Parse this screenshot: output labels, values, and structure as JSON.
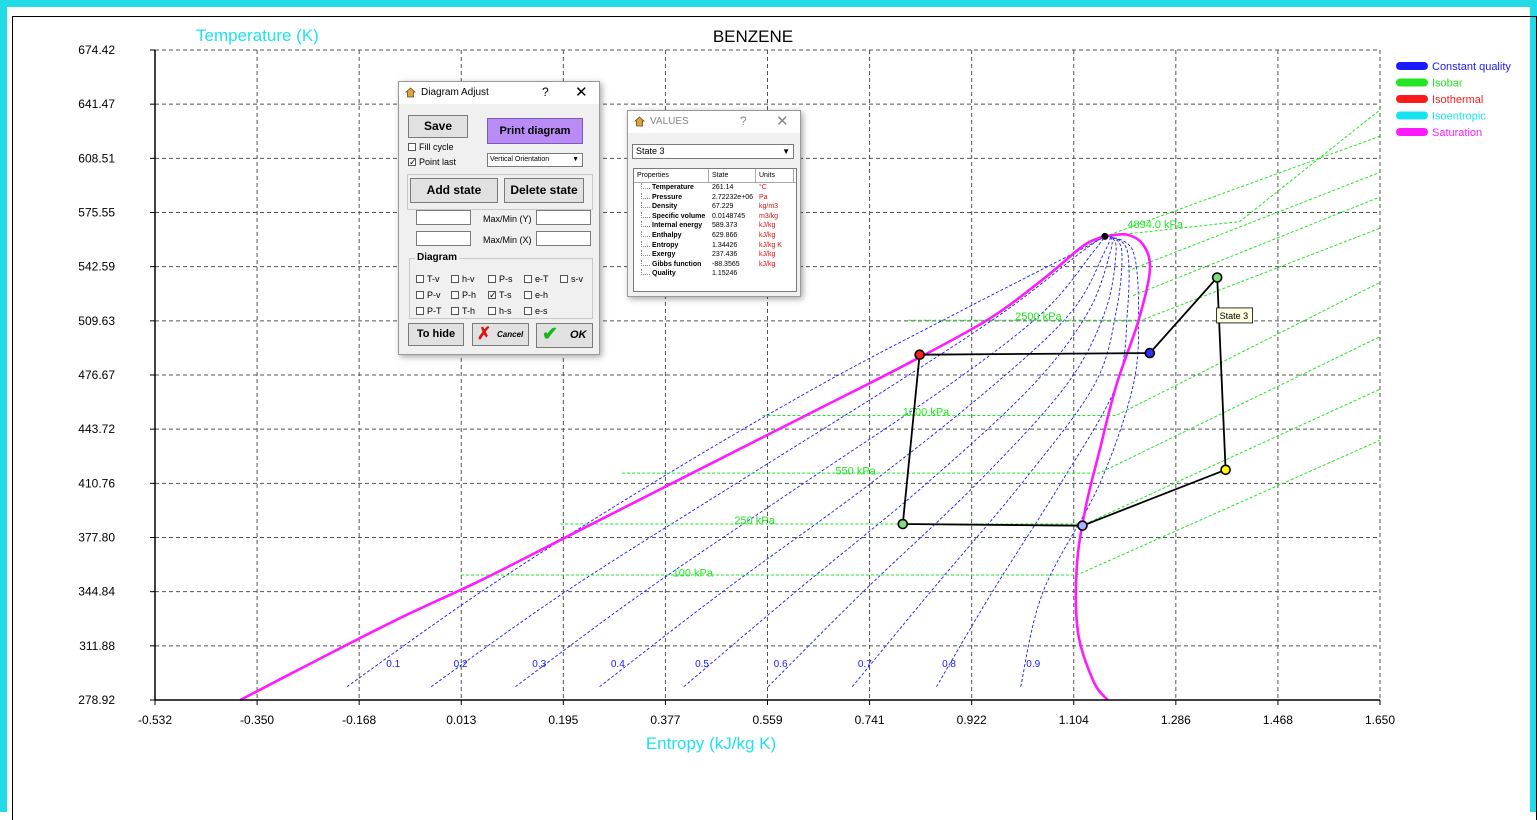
{
  "chart_data": {
    "type": "line",
    "title": "BENZENE",
    "ylabel": "Temperature (K)",
    "xlabel": "Entropy (kJ/kg K)",
    "xlim": [
      -0.532,
      1.65
    ],
    "ylim": [
      278.92,
      674.42
    ],
    "x_ticks": [
      "-0.532",
      "-0.350",
      "-0.168",
      "0.013",
      "0.195",
      "0.377",
      "0.559",
      "0.741",
      "0.922",
      "1.104",
      "1.286",
      "1.468",
      "1.650"
    ],
    "y_ticks": [
      "278.92",
      "311.88",
      "344.84",
      "377.80",
      "410.76",
      "443.72",
      "476.67",
      "509.63",
      "542.59",
      "575.55",
      "608.51",
      "641.47",
      "674.42"
    ],
    "grid": true,
    "colors": {
      "quality": "#1a1aff",
      "isobar": "#22e622",
      "isothermal": "#ff1a1a",
      "isentropic": "#17e3f0",
      "saturation": "#ff1aff",
      "cycle": "#000000",
      "axis_label": "#1ee3ee"
    },
    "legend_position": "right",
    "legend": [
      {
        "label": "Constant quality",
        "color": "#1a1aff"
      },
      {
        "label": "Isobar",
        "color": "#22e622"
      },
      {
        "label": "Isothermal",
        "color": "#ff1a1a"
      },
      {
        "label": "Isoentropic",
        "color": "#17e3f0"
      },
      {
        "label": "Saturation",
        "color": "#ff1aff"
      }
    ],
    "saturation_curve": [
      [
        -0.38,
        278.92
      ],
      [
        -0.25,
        302
      ],
      [
        -0.1,
        328
      ],
      [
        0.05,
        352
      ],
      [
        0.2,
        378
      ],
      [
        0.35,
        404
      ],
      [
        0.5,
        430
      ],
      [
        0.65,
        456
      ],
      [
        0.8,
        482
      ],
      [
        0.95,
        510
      ],
      [
        1.05,
        535
      ],
      [
        1.12,
        555
      ],
      [
        1.15,
        560
      ],
      [
        1.16,
        561
      ],
      [
        1.2,
        562
      ],
      [
        1.23,
        555
      ],
      [
        1.24,
        540
      ],
      [
        1.22,
        510
      ],
      [
        1.18,
        470
      ],
      [
        1.15,
        430
      ],
      [
        1.125,
        395
      ],
      [
        1.11,
        360
      ],
      [
        1.112,
        320
      ],
      [
        1.14,
        290
      ],
      [
        1.165,
        278.92
      ]
    ],
    "critical_point": [
      1.16,
      561
    ],
    "quality_lines": [
      {
        "label": "0.1",
        "x_label": -0.12,
        "y_label": 299,
        "x_start": -0.19,
        "points": [
          [
            -0.19,
            287
          ],
          [
            0.05,
            345
          ],
          [
            0.35,
            410
          ],
          [
            0.65,
            470
          ],
          [
            0.9,
            515
          ],
          [
            1.1,
            550
          ],
          [
            1.16,
            561
          ]
        ]
      },
      {
        "label": "0.2",
        "x_label": 0.0,
        "y_label": 299,
        "x_start": -0.04,
        "points": [
          [
            -0.04,
            287
          ],
          [
            0.2,
            345
          ],
          [
            0.5,
            410
          ],
          [
            0.78,
            470
          ],
          [
            0.98,
            515
          ],
          [
            1.12,
            552
          ],
          [
            1.16,
            561
          ]
        ]
      },
      {
        "label": "0.3",
        "x_label": 0.14,
        "y_label": 299,
        "x_start": 0.11,
        "points": [
          [
            0.11,
            287
          ],
          [
            0.34,
            345
          ],
          [
            0.62,
            410
          ],
          [
            0.88,
            470
          ],
          [
            1.05,
            515
          ],
          [
            1.14,
            552
          ],
          [
            1.16,
            561
          ]
        ]
      },
      {
        "label": "0.4",
        "x_label": 0.28,
        "y_label": 299,
        "x_start": 0.26,
        "points": [
          [
            0.26,
            287
          ],
          [
            0.48,
            345
          ],
          [
            0.74,
            410
          ],
          [
            0.96,
            470
          ],
          [
            1.1,
            515
          ],
          [
            1.16,
            552
          ],
          [
            1.17,
            561
          ]
        ]
      },
      {
        "label": "0.5",
        "x_label": 0.43,
        "y_label": 299,
        "x_start": 0.41,
        "points": [
          [
            0.41,
            287
          ],
          [
            0.61,
            345
          ],
          [
            0.84,
            410
          ],
          [
            1.03,
            470
          ],
          [
            1.13,
            515
          ],
          [
            1.17,
            552
          ],
          [
            1.17,
            561
          ]
        ]
      },
      {
        "label": "0.6",
        "x_label": 0.57,
        "y_label": 299,
        "x_start": 0.56,
        "points": [
          [
            0.56,
            287
          ],
          [
            0.73,
            345
          ],
          [
            0.93,
            410
          ],
          [
            1.09,
            470
          ],
          [
            1.16,
            515
          ],
          [
            1.18,
            552
          ],
          [
            1.17,
            561
          ]
        ]
      },
      {
        "label": "0.7",
        "x_label": 0.72,
        "y_label": 299,
        "x_start": 0.71,
        "points": [
          [
            0.71,
            287
          ],
          [
            0.85,
            345
          ],
          [
            1.01,
            410
          ],
          [
            1.14,
            470
          ],
          [
            1.18,
            515
          ],
          [
            1.19,
            552
          ],
          [
            1.17,
            561
          ]
        ]
      },
      {
        "label": "0.8",
        "x_label": 0.87,
        "y_label": 299,
        "x_start": 0.86,
        "points": [
          [
            0.86,
            287
          ],
          [
            0.96,
            345
          ],
          [
            1.08,
            410
          ],
          [
            1.18,
            470
          ],
          [
            1.2,
            515
          ],
          [
            1.2,
            552
          ],
          [
            1.17,
            561
          ]
        ]
      },
      {
        "label": "0.9",
        "x_label": 1.02,
        "y_label": 299,
        "x_start": 1.01,
        "points": [
          [
            1.01,
            287
          ],
          [
            1.05,
            345
          ],
          [
            1.15,
            410
          ],
          [
            1.21,
            470
          ],
          [
            1.22,
            515
          ],
          [
            1.21,
            552
          ],
          [
            1.17,
            561
          ]
        ]
      }
    ],
    "isobars": [
      {
        "label": "100 kPa",
        "x_label": 0.39,
        "y_label": 354,
        "points": [
          [
            0.013,
            355
          ],
          [
            1.11,
            355
          ],
          [
            1.65,
            437
          ]
        ]
      },
      {
        "label": "250 kPa",
        "x_label": 0.5,
        "y_label": 386,
        "points": [
          [
            0.19,
            386
          ],
          [
            1.125,
            386
          ],
          [
            1.65,
            468
          ]
        ]
      },
      {
        "label": "550 kPa",
        "x_label": 0.68,
        "y_label": 416,
        "points": [
          [
            0.3,
            417
          ],
          [
            1.15,
            417
          ],
          [
            1.65,
            500
          ]
        ]
      },
      {
        "label": "1000 kPa",
        "x_label": 0.8,
        "y_label": 452,
        "points": [
          [
            0.55,
            452
          ],
          [
            1.18,
            452
          ],
          [
            1.65,
            533
          ]
        ]
      },
      {
        "label": "2500 kPa",
        "x_label": 1.0,
        "y_label": 510,
        "points": [
          [
            0.81,
            510
          ],
          [
            1.225,
            510
          ],
          [
            1.65,
            566
          ]
        ]
      },
      {
        "label": "4894.0 kPa",
        "x_label": 1.2,
        "y_label": 566,
        "points": [
          [
            1.16,
            561
          ],
          [
            1.4,
            570
          ],
          [
            1.65,
            638
          ]
        ]
      }
    ],
    "extra_isobars": [
      [
        [
          1.16,
          561
        ],
        [
          1.65,
          622
        ]
      ],
      [
        [
          1.2,
          540
        ],
        [
          1.65,
          600
        ]
      ],
      [
        [
          1.21,
          525
        ],
        [
          1.65,
          585
        ]
      ]
    ],
    "cycle_states": [
      {
        "x": 0.8,
        "y": 386,
        "fill": "#7fdc7f"
      },
      {
        "x": 1.12,
        "y": 385,
        "fill": "#b0b0ff"
      },
      {
        "x": 1.375,
        "y": 419,
        "fill": "#ffff00"
      },
      {
        "x": 1.36,
        "y": 536,
        "fill": "#7fdc7f"
      },
      {
        "x": 1.24,
        "y": 490,
        "fill": "#3030ff"
      },
      {
        "x": 0.83,
        "y": 489,
        "fill": "#ff2020"
      }
    ],
    "state_tooltip": {
      "label": "State 3",
      "x": 1.375,
      "y": 512
    }
  },
  "diagram_adjust": {
    "title": "Diagram Adjust",
    "help": "?",
    "close": "✕",
    "save": "Save",
    "print": "Print diagram",
    "fill_cycle": "Fill cycle",
    "point_last": "Point last",
    "orientation": "Vertical Orientation",
    "add_state": "Add state",
    "delete_state": "Delete state",
    "maxmin_y": "Max/Min (Y)",
    "maxmin_x": "Max/Min (X)",
    "diagram_label": "Diagram",
    "diagrams": [
      "T-v",
      "h-v",
      "P-s",
      "e-T",
      "s-v",
      "P-v",
      "P-h",
      "T-s",
      "e-h",
      "P-T",
      "T-h",
      "h-s",
      "e-s"
    ],
    "to_hide": "To hide",
    "cancel": "Cancel",
    "ok": "OK"
  },
  "values_window": {
    "title": "VALUES",
    "help": "?",
    "close": "✕",
    "state_selected": "State 3",
    "headers": [
      "Properties",
      "State",
      "Units"
    ],
    "rows": [
      {
        "p": "Temperature",
        "v": "261.14",
        "u": "°C"
      },
      {
        "p": "Pressure",
        "v": "2.72232e+06",
        "u": "Pa"
      },
      {
        "p": "Density",
        "v": "67.229",
        "u": "kg/m3"
      },
      {
        "p": "Specific volume",
        "v": "0.0148745",
        "u": "m3/kg"
      },
      {
        "p": "Internal energy",
        "v": "589.373",
        "u": "kJ/kg"
      },
      {
        "p": "Enthalpy",
        "v": "629.866",
        "u": "kJ/kg"
      },
      {
        "p": "Entropy",
        "v": "1.34426",
        "u": "kJ/kg K"
      },
      {
        "p": "Exergy",
        "v": "237.436",
        "u": "kJ/kg"
      },
      {
        "p": "Gibbs function",
        "v": "-88.3565",
        "u": "kJ/kg"
      },
      {
        "p": "Quality",
        "v": "1.15246",
        "u": ""
      }
    ]
  }
}
